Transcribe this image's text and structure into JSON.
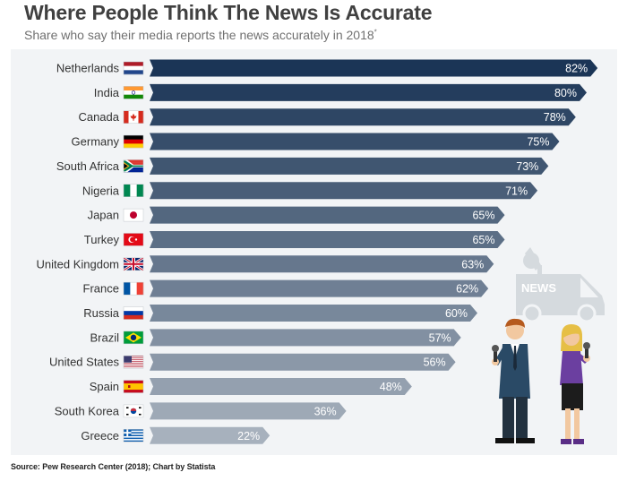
{
  "header": {
    "title": "Where People Think The News Is Accurate",
    "subtitle": "Share who say their media reports the news accurately in 2018",
    "subtitle_mark": "*"
  },
  "chart_data": {
    "type": "bar",
    "orientation": "horizontal",
    "categories": [
      "Netherlands",
      "India",
      "Canada",
      "Germany",
      "South Africa",
      "Nigeria",
      "Japan",
      "Turkey",
      "United Kingdom",
      "France",
      "Russia",
      "Brazil",
      "United States",
      "Spain",
      "South Korea",
      "Greece"
    ],
    "values": [
      82,
      80,
      78,
      75,
      73,
      71,
      65,
      65,
      63,
      62,
      60,
      57,
      56,
      48,
      36,
      22
    ],
    "value_labels": [
      "82%",
      "80%",
      "78%",
      "75%",
      "73%",
      "71%",
      "65%",
      "65%",
      "63%",
      "62%",
      "60%",
      "57%",
      "56%",
      "48%",
      "36%",
      "22%"
    ],
    "unit": "%",
    "flags": [
      "netherlands-flag-icon",
      "india-flag-icon",
      "canada-flag-icon",
      "germany-flag-icon",
      "south-africa-flag-icon",
      "nigeria-flag-icon",
      "japan-flag-icon",
      "turkey-flag-icon",
      "united-kingdom-flag-icon",
      "france-flag-icon",
      "russia-flag-icon",
      "brazil-flag-icon",
      "united-states-flag-icon",
      "spain-flag-icon",
      "south-korea-flag-icon",
      "greece-flag-icon"
    ],
    "bar_color_top": "#1b3556",
    "bar_color_bottom": "#a7b1bd",
    "xlim": [
      0,
      100
    ],
    "grid": false,
    "legend": "none"
  },
  "illustration": {
    "van_label": "NEWS",
    "icons": [
      "news-van-icon",
      "male-reporter-icon",
      "female-reporter-icon"
    ]
  },
  "footer": {
    "source": "Source: Pew Research Center (2018); Chart by Statista"
  },
  "colors": {
    "panel_background": "#f2f4f6",
    "title": "#404040",
    "subtitle": "#707070"
  }
}
